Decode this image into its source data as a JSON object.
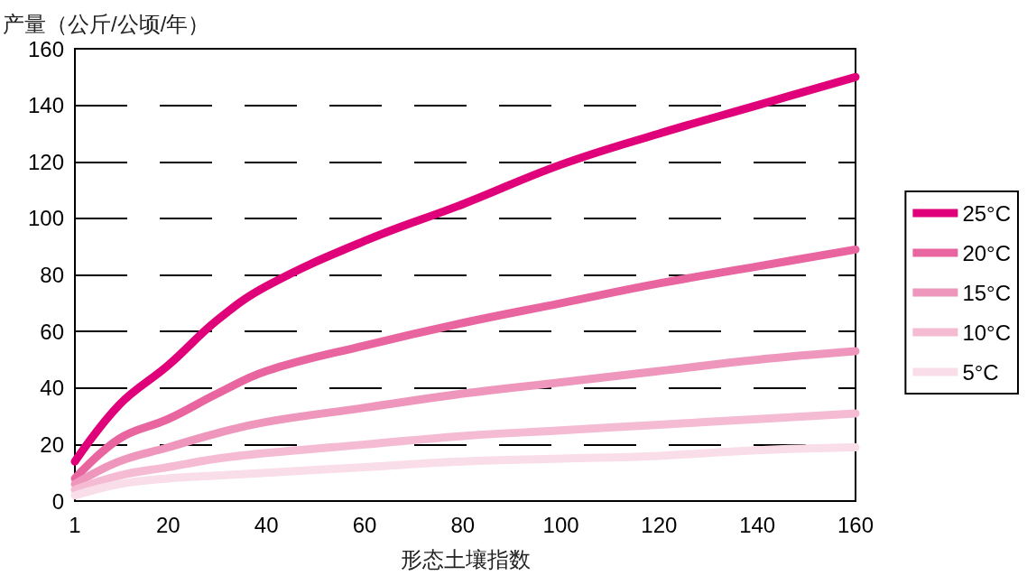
{
  "chart_data": {
    "type": "line",
    "ylabel": "产量（公斤/公顷/年）",
    "xlabel": "形态土壤指数",
    "x": [
      1,
      10,
      20,
      30,
      40,
      60,
      80,
      100,
      120,
      140,
      160
    ],
    "xlim": [
      1,
      160
    ],
    "xticks": [
      1,
      20,
      40,
      60,
      80,
      100,
      120,
      140,
      160
    ],
    "ylim": [
      0,
      160
    ],
    "yticks": [
      0,
      20,
      40,
      60,
      80,
      100,
      120,
      140,
      160
    ],
    "grid": "y",
    "legend": "right",
    "marker": "none",
    "line_style": "solid",
    "series": [
      {
        "name": "25°C",
        "color": "#e0007a",
        "values": [
          14,
          34,
          48,
          64,
          76,
          92,
          105,
          119,
          130,
          140,
          150
        ]
      },
      {
        "name": "20°C",
        "color": "#e8659f",
        "values": [
          8,
          22,
          29,
          38,
          46,
          55,
          63,
          70,
          77,
          83,
          89
        ]
      },
      {
        "name": "15°C",
        "color": "#ee96bb",
        "values": [
          6,
          14,
          19,
          24,
          28,
          33,
          38,
          42,
          46,
          50,
          53
        ]
      },
      {
        "name": "10°C",
        "color": "#f4bbd3",
        "values": [
          4,
          9,
          12,
          15,
          17,
          20,
          23,
          25,
          27,
          29,
          31
        ]
      },
      {
        "name": "5°C",
        "color": "#f9dde8",
        "values": [
          2,
          6,
          8,
          9,
          10,
          12,
          14,
          15,
          16,
          18,
          19
        ]
      }
    ]
  }
}
